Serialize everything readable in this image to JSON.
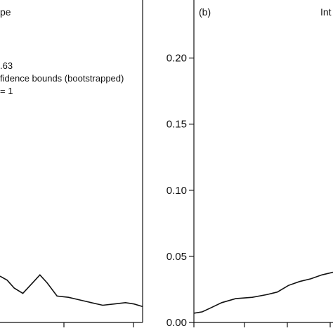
{
  "chart_data": [
    {
      "type": "line",
      "panel_label": "pe",
      "legend": [
        ".63",
        "fidence bounds (bootstrapped)",
        "= 1"
      ],
      "x_tick_count_visible": 2,
      "series": [
        {
          "values_visible": [
            [
              0,
              0.035
            ],
            [
              0.05,
              0.032
            ],
            [
              0.1,
              0.026
            ],
            [
              0.16,
              0.022
            ],
            [
              0.22,
              0.029
            ],
            [
              0.28,
              0.036
            ],
            [
              0.33,
              0.03
            ],
            [
              0.4,
              0.02
            ],
            [
              0.48,
              0.019
            ],
            [
              0.56,
              0.017
            ],
            [
              0.64,
              0.015
            ],
            [
              0.72,
              0.013
            ],
            [
              0.8,
              0.014
            ],
            [
              0.88,
              0.015
            ],
            [
              0.94,
              0.014
            ],
            [
              1.0,
              0.012
            ]
          ]
        }
      ]
    },
    {
      "type": "line",
      "panel_label": "(b)",
      "title_partial": "Int",
      "ylim": [
        0,
        0.22
      ],
      "y_ticks": [
        "0.00",
        "0.05",
        "0.10",
        "0.15",
        "0.20"
      ],
      "series": [
        {
          "values_visible": [
            [
              0,
              0.007
            ],
            [
              0.06,
              0.008
            ],
            [
              0.12,
              0.011
            ],
            [
              0.2,
              0.015
            ],
            [
              0.3,
              0.018
            ],
            [
              0.42,
              0.019
            ],
            [
              0.52,
              0.021
            ],
            [
              0.6,
              0.023
            ],
            [
              0.68,
              0.028
            ],
            [
              0.76,
              0.031
            ],
            [
              0.84,
              0.033
            ],
            [
              0.92,
              0.036
            ],
            [
              1.0,
              0.038
            ]
          ]
        }
      ]
    }
  ]
}
